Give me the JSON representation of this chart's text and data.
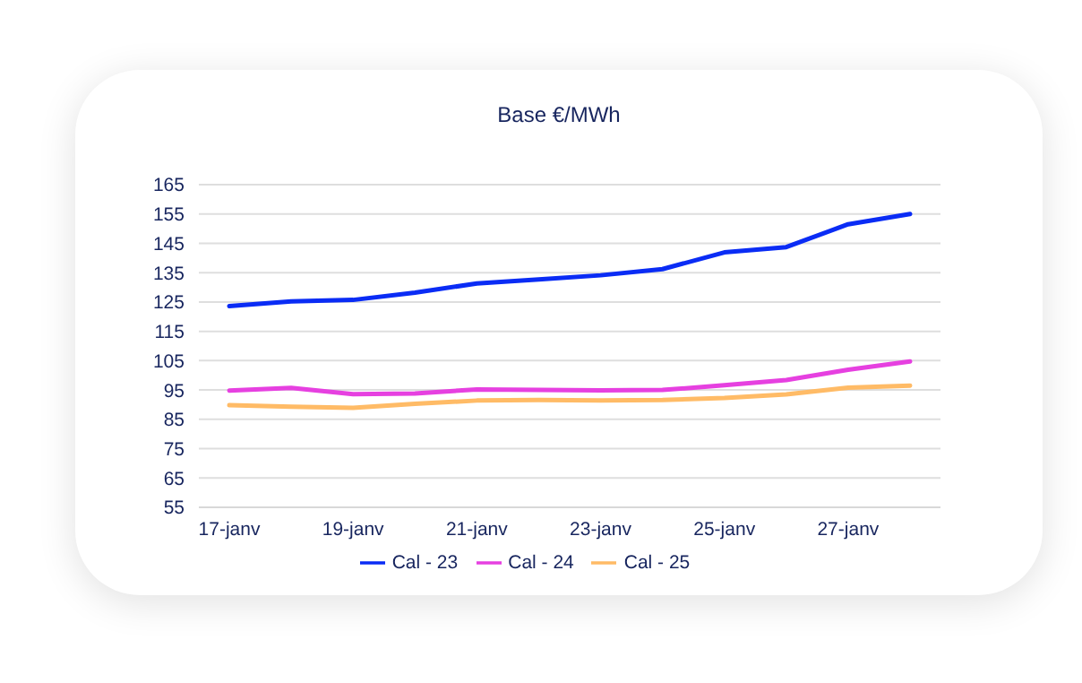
{
  "chart_data": {
    "type": "line",
    "title": "Base €/MWh",
    "categories": [
      "17-janv",
      null,
      "19-janv",
      null,
      "21-janv",
      null,
      "23-janv",
      null,
      "25-janv",
      null,
      "27-janv",
      null
    ],
    "series": [
      {
        "name": "Cal - 23",
        "color": "#0a2cf5",
        "values": [
          123.6,
          125.2,
          125.7,
          128.2,
          131.3,
          132.7,
          134.1,
          136.2,
          141.9,
          143.7,
          151.5,
          155
        ]
      },
      {
        "name": "Cal - 24",
        "color": "#e640e0",
        "values": [
          94.8,
          95.7,
          93.6,
          93.8,
          95.2,
          95,
          94.9,
          95,
          96.6,
          98.4,
          101.9,
          104.7
        ]
      },
      {
        "name": "Cal - 25",
        "color": "#ffbb66",
        "values": [
          89.8,
          89.3,
          88.9,
          90.3,
          91.4,
          91.6,
          91.4,
          91.6,
          92.3,
          93.5,
          95.8,
          96.5
        ]
      }
    ],
    "ylim": [
      55,
      165
    ],
    "yticks": [
      55,
      65,
      75,
      85,
      95,
      105,
      115,
      125,
      135,
      145,
      155,
      165
    ],
    "grid": "y",
    "legend": "bottom",
    "marker": "none",
    "line_style": "solid"
  }
}
